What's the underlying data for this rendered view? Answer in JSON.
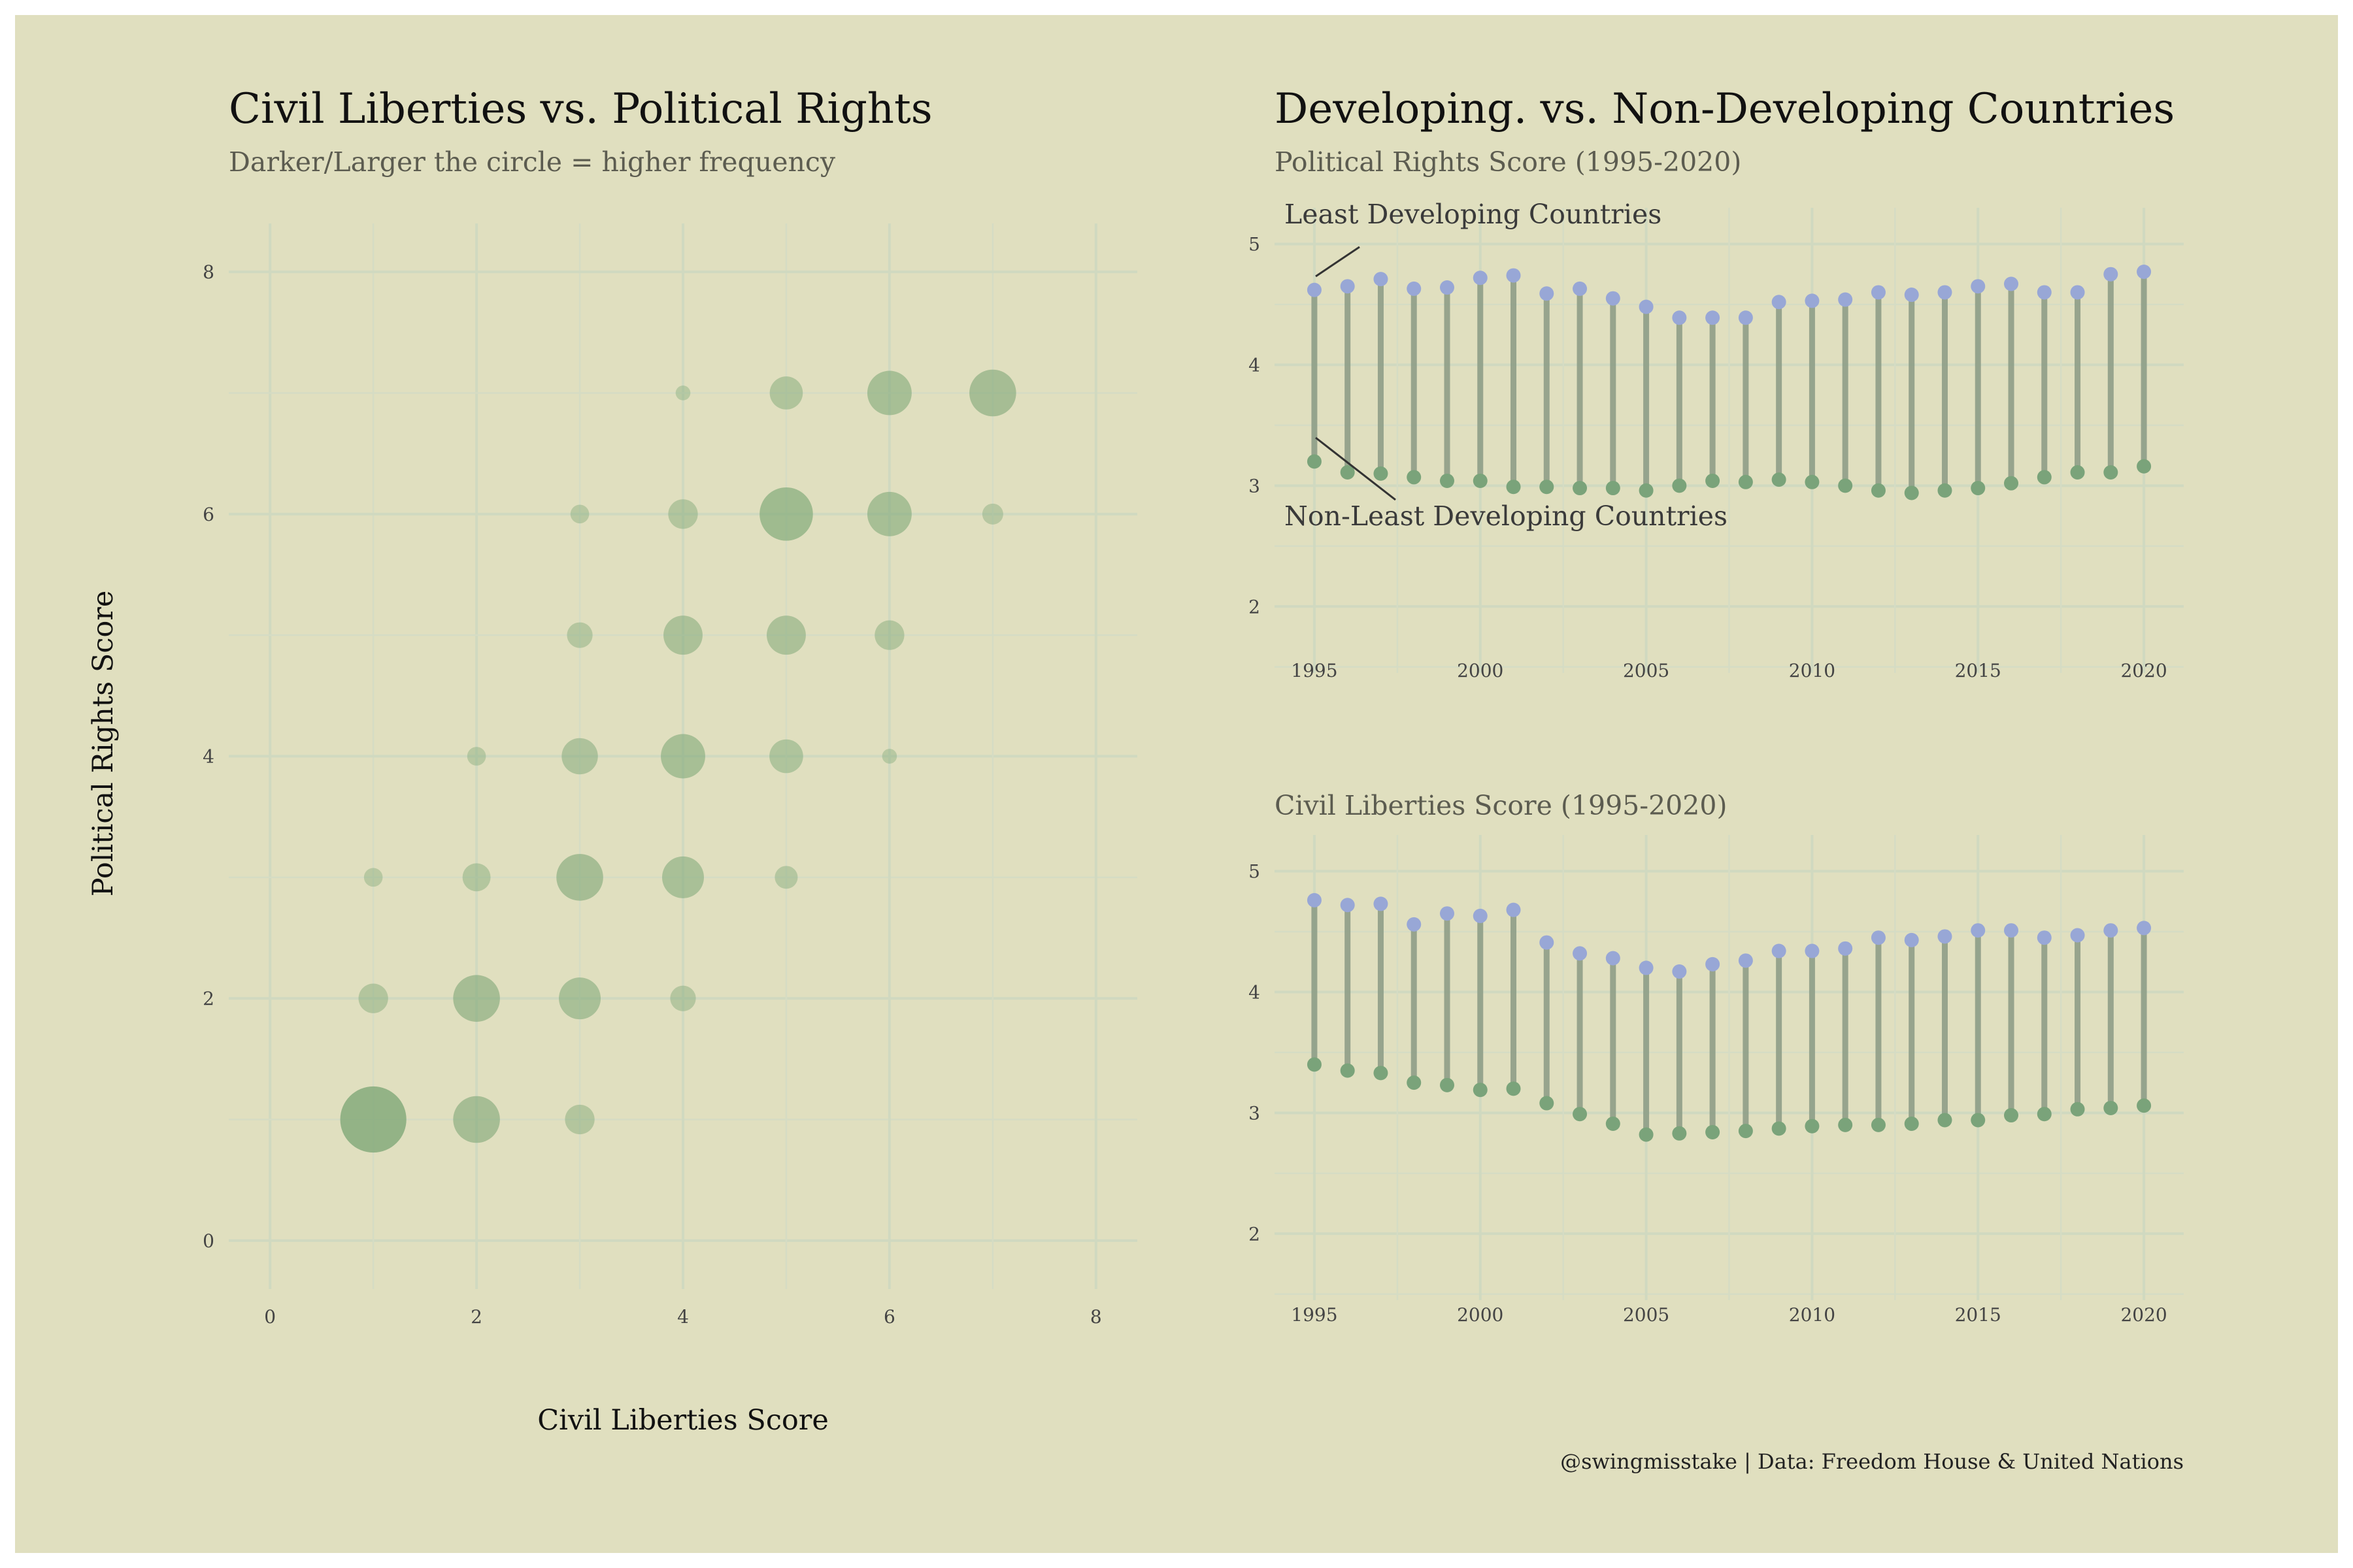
{
  "colors": {
    "background": "#e0dfbf",
    "bubble": "#7fa878",
    "least_developing": "#98a7d6",
    "non_least_developing": "#7aa37a",
    "segment": "#8a9a84"
  },
  "left_panel": {
    "title": "Civil Liberties vs. Political Rights",
    "subtitle": "Darker/Larger the circle = higher frequency",
    "xlabel": "Civil Liberties Score",
    "ylabel": "Political Rights Score",
    "x_ticks": [
      "0",
      "2",
      "4",
      "6",
      "8"
    ],
    "y_ticks": [
      "0",
      "2",
      "4",
      "6",
      "8"
    ]
  },
  "right_panel": {
    "title": "Developing. vs. Non-Developing Countries",
    "top_subtitle": "Political Rights Score (1995-2020)",
    "bottom_subtitle": "Civil Liberties Score (1995-2020)",
    "annotation_least": "Least Developing Countries",
    "annotation_non_least": "Non-Least Developing Countries",
    "x_ticks": [
      "1995",
      "2000",
      "2005",
      "2010",
      "2015",
      "2020"
    ],
    "y_ticks": [
      "2",
      "3",
      "4",
      "5"
    ]
  },
  "caption": "@swingmisstake | Data: Freedom House & United Nations",
  "chart_data": [
    {
      "type": "scatter",
      "title": "Civil Liberties vs. Political Rights",
      "subtitle": "Darker/Larger the circle = higher frequency",
      "xlabel": "Civil Liberties Score",
      "ylabel": "Political Rights Score",
      "xlim": [
        0,
        8
      ],
      "ylim": [
        0,
        8
      ],
      "grid": true,
      "points": [
        {
          "x": 1,
          "y": 1,
          "size": 10
        },
        {
          "x": 2,
          "y": 1,
          "size": 5
        },
        {
          "x": 3,
          "y": 1,
          "size": 2
        },
        {
          "x": 1,
          "y": 2,
          "size": 2
        },
        {
          "x": 2,
          "y": 2,
          "size": 5
        },
        {
          "x": 3,
          "y": 2,
          "size": 4
        },
        {
          "x": 4,
          "y": 2,
          "size": 1.5
        },
        {
          "x": 1,
          "y": 3,
          "size": 0.8
        },
        {
          "x": 2,
          "y": 3,
          "size": 1.8
        },
        {
          "x": 3,
          "y": 3,
          "size": 5
        },
        {
          "x": 4,
          "y": 3,
          "size": 4
        },
        {
          "x": 5,
          "y": 3,
          "size": 1.2
        },
        {
          "x": 2,
          "y": 4,
          "size": 0.8
        },
        {
          "x": 3,
          "y": 4,
          "size": 3
        },
        {
          "x": 4,
          "y": 4,
          "size": 4.5
        },
        {
          "x": 5,
          "y": 4,
          "size": 2.6
        },
        {
          "x": 6,
          "y": 4,
          "size": 0.5
        },
        {
          "x": 3,
          "y": 5,
          "size": 1.5
        },
        {
          "x": 4,
          "y": 5,
          "size": 3.5
        },
        {
          "x": 5,
          "y": 5,
          "size": 3.5
        },
        {
          "x": 6,
          "y": 5,
          "size": 2
        },
        {
          "x": 3,
          "y": 6,
          "size": 0.8
        },
        {
          "x": 4,
          "y": 6,
          "size": 2
        },
        {
          "x": 5,
          "y": 6,
          "size": 6.5
        },
        {
          "x": 6,
          "y": 6,
          "size": 4.5
        },
        {
          "x": 7,
          "y": 6,
          "size": 1
        },
        {
          "x": 4,
          "y": 7,
          "size": 0.5
        },
        {
          "x": 5,
          "y": 7,
          "size": 2.5
        },
        {
          "x": 6,
          "y": 7,
          "size": 4.5
        },
        {
          "x": 7,
          "y": 7,
          "size": 5
        }
      ]
    },
    {
      "type": "dumbbell",
      "title": "Developing. vs. Non-Developing Countries",
      "subtitle": "Political Rights Score (1995-2020)",
      "xlim": [
        1993.8,
        2021.2
      ],
      "ylim": [
        1.45,
        5.3
      ],
      "grid": true,
      "x": [
        1995,
        1996,
        1997,
        1998,
        1999,
        2000,
        2001,
        2002,
        2003,
        2004,
        2005,
        2006,
        2007,
        2008,
        2009,
        2010,
        2011,
        2012,
        2013,
        2014,
        2015,
        2016,
        2017,
        2018,
        2019,
        2020
      ],
      "series": [
        {
          "name": "Least Developing Countries",
          "values": [
            4.62,
            4.65,
            4.71,
            4.63,
            4.64,
            4.72,
            4.74,
            4.59,
            4.63,
            4.55,
            4.48,
            4.39,
            4.39,
            4.39,
            4.52,
            4.53,
            4.54,
            4.6,
            4.58,
            4.6,
            4.65,
            4.67,
            4.6,
            4.6,
            4.75,
            4.77
          ]
        },
        {
          "name": "Non-Least Developing Countries",
          "values": [
            3.2,
            3.11,
            3.1,
            3.07,
            3.04,
            3.04,
            2.99,
            2.99,
            2.98,
            2.98,
            2.96,
            3.0,
            3.04,
            3.03,
            3.05,
            3.03,
            3.0,
            2.96,
            2.94,
            2.96,
            2.98,
            3.02,
            3.07,
            3.11,
            3.11,
            3.16
          ]
        }
      ]
    },
    {
      "type": "dumbbell",
      "subtitle": "Civil Liberties Score (1995-2020)",
      "xlim": [
        1993.8,
        2021.2
      ],
      "ylim": [
        1.45,
        5.3
      ],
      "grid": true,
      "x": [
        1995,
        1996,
        1997,
        1998,
        1999,
        2000,
        2001,
        2002,
        2003,
        2004,
        2005,
        2006,
        2007,
        2008,
        2009,
        2010,
        2011,
        2012,
        2013,
        2014,
        2015,
        2016,
        2017,
        2018,
        2019,
        2020
      ],
      "series": [
        {
          "name": "Least Developing Countries",
          "values": [
            4.76,
            4.72,
            4.73,
            4.56,
            4.65,
            4.63,
            4.68,
            4.41,
            4.32,
            4.28,
            4.2,
            4.17,
            4.23,
            4.26,
            4.34,
            4.34,
            4.36,
            4.45,
            4.43,
            4.46,
            4.51,
            4.51,
            4.45,
            4.47,
            4.51,
            4.53
          ]
        },
        {
          "name": "Non-Least Developing Countries",
          "values": [
            3.4,
            3.35,
            3.33,
            3.25,
            3.23,
            3.19,
            3.2,
            3.08,
            2.99,
            2.91,
            2.82,
            2.83,
            2.84,
            2.85,
            2.87,
            2.89,
            2.9,
            2.9,
            2.91,
            2.94,
            2.94,
            2.98,
            2.99,
            3.03,
            3.04,
            3.06
          ]
        }
      ]
    }
  ]
}
